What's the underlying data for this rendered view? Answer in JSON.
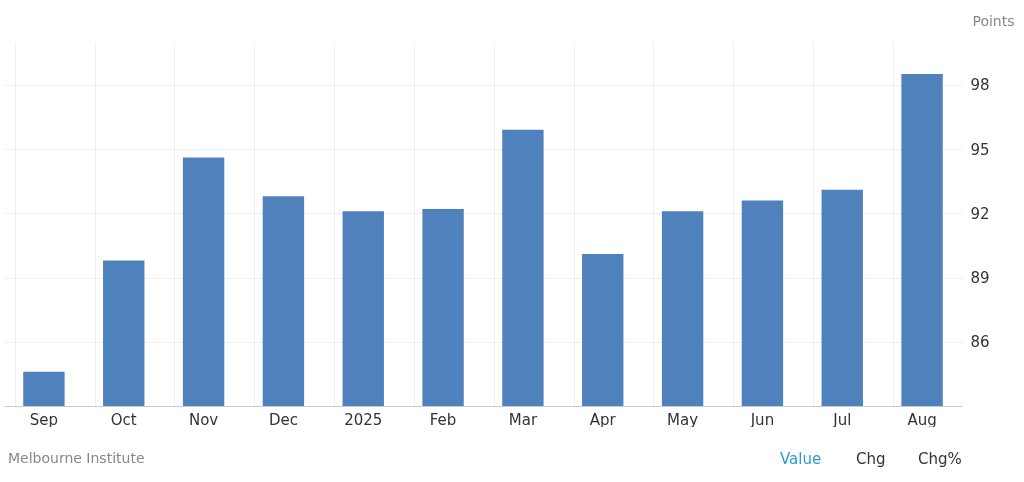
{
  "chart_data": {
    "type": "bar",
    "ylabel": "Points",
    "categories": [
      "Sep",
      "Oct",
      "Nov",
      "Dec",
      "2025",
      "Feb",
      "Mar",
      "Apr",
      "May",
      "Jun",
      "Jul",
      "Aug"
    ],
    "values": [
      84.6,
      89.8,
      94.6,
      92.8,
      92.1,
      92.2,
      95.9,
      90.1,
      92.1,
      92.6,
      93.1,
      98.5
    ],
    "color": "#4f81bd",
    "ylim": [
      83,
      100
    ],
    "yticks": [
      86,
      89,
      92,
      95,
      98
    ],
    "grid": true,
    "annotations": [
      "Melbourne Institute",
      "Value",
      "Chg",
      "Chg%"
    ]
  }
}
